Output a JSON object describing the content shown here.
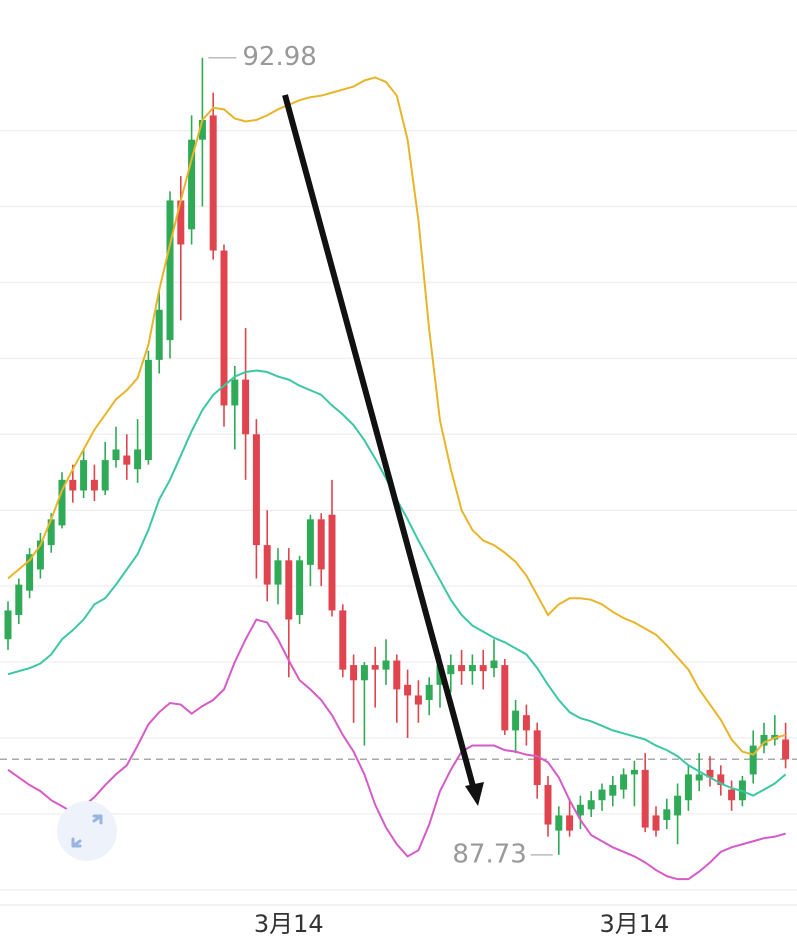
{
  "chart_data": {
    "type": "candlestick",
    "categories": [
      null,
      null,
      null,
      null,
      null,
      null,
      null,
      null,
      null,
      null,
      null,
      null,
      null,
      null,
      null,
      null,
      null,
      null,
      null,
      null,
      null,
      null,
      null,
      null,
      null,
      null,
      "3月14",
      null,
      null,
      null,
      null,
      null,
      null,
      null,
      null,
      null,
      null,
      null,
      null,
      null,
      null,
      null,
      null,
      null,
      null,
      null,
      null,
      null,
      null,
      null,
      null,
      null,
      null,
      null,
      null,
      null,
      null,
      null,
      "3月14",
      null,
      null,
      null,
      null,
      null,
      null,
      null,
      null,
      null,
      null,
      null,
      null,
      null,
      null
    ],
    "ohlc": [
      [
        89.15,
        89.4,
        89.08,
        89.34
      ],
      [
        89.31,
        89.55,
        89.25,
        89.51
      ],
      [
        89.47,
        89.75,
        89.42,
        89.71
      ],
      [
        89.61,
        89.85,
        89.55,
        89.8
      ],
      [
        89.77,
        89.98,
        89.72,
        89.94
      ],
      [
        89.9,
        90.25,
        89.88,
        90.2
      ],
      [
        90.2,
        90.3,
        90.05,
        90.13
      ],
      [
        90.13,
        90.4,
        90.08,
        90.33
      ],
      [
        90.2,
        90.3,
        90.06,
        90.13
      ],
      [
        90.13,
        90.45,
        90.1,
        90.33
      ],
      [
        90.33,
        90.55,
        90.28,
        90.4
      ],
      [
        90.36,
        90.5,
        90.2,
        90.3
      ],
      [
        90.27,
        90.6,
        90.18,
        90.4
      ],
      [
        90.33,
        91.05,
        90.3,
        90.99
      ],
      [
        90.99,
        91.45,
        90.9,
        91.32
      ],
      [
        91.12,
        92.1,
        91.0,
        92.04
      ],
      [
        92.04,
        92.2,
        91.25,
        91.75
      ],
      [
        91.85,
        92.6,
        91.75,
        92.44
      ],
      [
        92.44,
        92.98,
        92.0,
        92.57
      ],
      [
        92.6,
        92.75,
        91.65,
        91.71
      ],
      [
        91.71,
        91.75,
        90.55,
        90.69
      ],
      [
        90.69,
        90.95,
        90.4,
        90.86
      ],
      [
        90.86,
        91.2,
        90.2,
        90.5
      ],
      [
        90.5,
        90.6,
        89.55,
        89.77
      ],
      [
        89.77,
        90.0,
        89.4,
        89.51
      ],
      [
        89.51,
        89.75,
        89.38,
        89.67
      ],
      [
        89.67,
        89.75,
        88.9,
        89.28
      ],
      [
        89.31,
        89.7,
        89.25,
        89.67
      ],
      [
        89.64,
        89.97,
        89.5,
        89.94
      ],
      [
        89.94,
        89.98,
        89.5,
        89.61
      ],
      [
        89.97,
        90.2,
        89.3,
        89.34
      ],
      [
        89.34,
        89.38,
        88.9,
        88.95
      ],
      [
        88.98,
        89.05,
        88.6,
        88.88
      ],
      [
        88.88,
        89.0,
        88.45,
        88.98
      ],
      [
        88.98,
        89.1,
        88.7,
        88.95
      ],
      [
        88.95,
        89.15,
        88.85,
        89.01
      ],
      [
        89.01,
        89.05,
        88.6,
        88.82
      ],
      [
        88.85,
        88.95,
        88.5,
        88.78
      ],
      [
        88.78,
        88.88,
        88.6,
        88.72
      ],
      [
        88.75,
        88.9,
        88.65,
        88.85
      ],
      [
        88.85,
        89.05,
        88.7,
        88.98
      ],
      [
        88.92,
        89.05,
        88.8,
        88.98
      ],
      [
        88.98,
        89.08,
        88.85,
        88.94
      ],
      [
        88.94,
        89.05,
        88.85,
        88.98
      ],
      [
        88.98,
        89.08,
        88.82,
        88.94
      ],
      [
        88.96,
        89.15,
        88.9,
        89.01
      ],
      [
        88.98,
        89.02,
        88.52,
        88.55
      ],
      [
        88.55,
        88.75,
        88.4,
        88.68
      ],
      [
        88.65,
        88.72,
        88.45,
        88.55
      ],
      [
        88.55,
        88.6,
        88.1,
        88.19
      ],
      [
        88.19,
        88.25,
        87.85,
        87.93
      ],
      [
        87.89,
        88.05,
        87.73,
        87.99
      ],
      [
        87.99,
        88.1,
        87.85,
        87.89
      ],
      [
        87.99,
        88.12,
        87.9,
        88.06
      ],
      [
        88.03,
        88.15,
        87.98,
        88.09
      ],
      [
        88.09,
        88.2,
        88.02,
        88.16
      ],
      [
        88.12,
        88.25,
        88.05,
        88.19
      ],
      [
        88.16,
        88.3,
        88.1,
        88.26
      ],
      [
        88.26,
        88.35,
        88.05,
        88.29
      ],
      [
        88.29,
        88.4,
        87.88,
        87.91
      ],
      [
        87.99,
        88.05,
        87.85,
        87.89
      ],
      [
        87.96,
        88.1,
        87.9,
        88.03
      ],
      [
        87.99,
        88.2,
        87.8,
        88.12
      ],
      [
        88.09,
        88.32,
        88.02,
        88.26
      ],
      [
        88.22,
        88.4,
        88.15,
        88.26
      ],
      [
        88.29,
        88.38,
        88.18,
        88.24
      ],
      [
        88.26,
        88.32,
        88.12,
        88.19
      ],
      [
        88.16,
        88.22,
        88.02,
        88.09
      ],
      [
        88.09,
        88.25,
        88.05,
        88.22
      ],
      [
        88.26,
        88.55,
        88.2,
        88.45
      ],
      [
        88.45,
        88.6,
        88.4,
        88.52
      ],
      [
        88.49,
        88.65,
        88.45,
        88.52
      ],
      [
        88.49,
        88.6,
        88.3,
        88.36
      ]
    ],
    "up_color": "#2faa57",
    "down_color": "#e0454f",
    "series": [
      {
        "color": "#e8b52a",
        "values": [
          89.55,
          89.61,
          89.67,
          89.77,
          89.94,
          90.13,
          90.27,
          90.4,
          90.53,
          90.63,
          90.73,
          90.79,
          90.87,
          91.09,
          91.45,
          91.75,
          92.04,
          92.31,
          92.57,
          92.65,
          92.64,
          92.58,
          92.56,
          92.57,
          92.6,
          92.64,
          92.67,
          92.7,
          92.72,
          92.73,
          92.75,
          92.77,
          92.79,
          92.83,
          92.85,
          92.82,
          92.73,
          92.44,
          91.91,
          91.19,
          90.59,
          90.27,
          90.0,
          89.87,
          89.8,
          89.77,
          89.72,
          89.66,
          89.57,
          89.44,
          89.31,
          89.38,
          89.42,
          89.42,
          89.41,
          89.38,
          89.33,
          89.29,
          89.26,
          89.22,
          89.18,
          89.11,
          89.03,
          88.95,
          88.82,
          88.72,
          88.62,
          88.49,
          88.41,
          88.39,
          88.47,
          88.5,
          88.52
        ]
      },
      {
        "color": "#3cc7a4",
        "values": [
          88.92,
          88.94,
          88.96,
          88.99,
          89.05,
          89.15,
          89.21,
          89.28,
          89.38,
          89.42,
          89.51,
          89.61,
          89.71,
          89.87,
          90.07,
          90.2,
          90.36,
          90.52,
          90.66,
          90.76,
          90.82,
          90.88,
          90.91,
          90.92,
          90.91,
          90.88,
          90.86,
          90.82,
          90.79,
          90.76,
          90.69,
          90.63,
          90.56,
          90.46,
          90.34,
          90.21,
          90.07,
          89.94,
          89.8,
          89.67,
          89.54,
          89.41,
          89.31,
          89.24,
          89.2,
          89.16,
          89.13,
          89.09,
          89.05,
          88.96,
          88.85,
          88.75,
          88.67,
          88.63,
          88.61,
          88.58,
          88.55,
          88.53,
          88.51,
          88.49,
          88.45,
          88.42,
          88.38,
          88.32,
          88.28,
          88.24,
          88.2,
          88.17,
          88.15,
          88.12,
          88.16,
          88.2,
          88.26
        ]
      },
      {
        "color": "#d65ac8",
        "values": [
          88.29,
          88.24,
          88.19,
          88.15,
          88.09,
          88.05,
          88.01,
          88.05,
          88.11,
          88.19,
          88.26,
          88.32,
          88.45,
          88.59,
          88.67,
          88.73,
          88.72,
          88.66,
          88.71,
          88.75,
          88.82,
          89.0,
          89.15,
          89.28,
          89.26,
          89.15,
          89.01,
          88.88,
          88.82,
          88.75,
          88.65,
          88.52,
          88.41,
          88.26,
          88.06,
          87.91,
          87.8,
          87.72,
          87.76,
          87.93,
          88.15,
          88.29,
          88.41,
          88.45,
          88.45,
          88.45,
          88.42,
          88.41,
          88.39,
          88.38,
          88.34,
          88.24,
          88.09,
          87.96,
          87.86,
          87.82,
          87.78,
          87.75,
          87.72,
          87.68,
          87.63,
          87.59,
          87.57,
          87.57,
          87.62,
          87.68,
          87.75,
          87.78,
          87.8,
          87.82,
          87.84,
          87.85,
          87.87
        ]
      }
    ],
    "high_marker": 92.98,
    "low_marker": 87.73,
    "last_price": 88.36,
    "ylim": [
      87.4,
      93.36
    ],
    "yticks": [
      87.5,
      88,
      88.5,
      89,
      89.5,
      90,
      90.5,
      91,
      91.5,
      92,
      92.5
    ],
    "grid": true
  }
}
